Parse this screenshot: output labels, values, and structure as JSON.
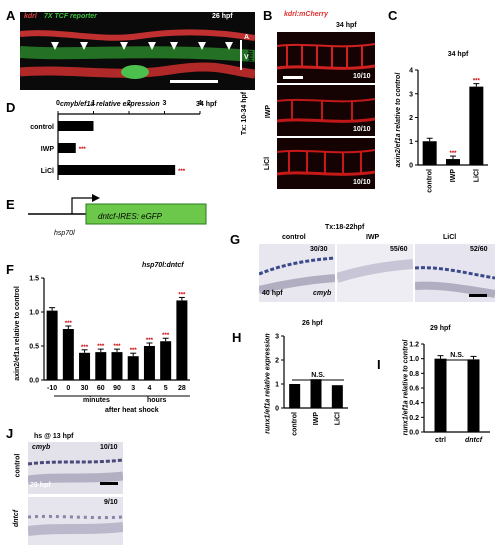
{
  "panels": {
    "A": {
      "label": "A",
      "gene1": "kdrl",
      "gene2": "7X TCF reporter",
      "stage": "26 hpf",
      "axis_a": "A",
      "axis_v": "V"
    },
    "B": {
      "label": "B",
      "gene": "kdrl:mCherry",
      "stage": "34 hpf",
      "treatment": "Tx: 10-34 hpf",
      "rows": [
        {
          "name": "control",
          "count": "10/10"
        },
        {
          "name": "IWP",
          "count": "10/10"
        },
        {
          "name": "LiCl",
          "count": "10/10"
        }
      ]
    },
    "C": {
      "label": "C",
      "title": "34 hpf",
      "ylabel": "axin2/ef1a relative to control",
      "sig": "***"
    },
    "D": {
      "label": "D",
      "title": "cmyb/ef1a relative expression",
      "stage": "34 hpf",
      "sig": "***"
    },
    "E": {
      "label": "E",
      "promoter": "hsp70l",
      "construct": "dntcf-IRES: eGFP"
    },
    "F": {
      "label": "F",
      "title": "hsp70l:dntcf",
      "ylabel": "axin2/ef1a relative to control",
      "group1": "minutes",
      "group2": "hours",
      "xlabel": "after heat shock",
      "sig": "***"
    },
    "G": {
      "label": "G",
      "treatment": "Tx:18-22hpf",
      "stage": "40 hpf",
      "gene": "cmyb",
      "columns": [
        {
          "name": "control",
          "count": "30/30"
        },
        {
          "name": "IWP",
          "count": "55/60"
        },
        {
          "name": "LiCl",
          "count": "52/60"
        }
      ]
    },
    "H": {
      "label": "H",
      "title": "26 hpf",
      "ylabel": "runx1/ef1a relative expression",
      "ns": "N.S."
    },
    "I": {
      "label": "I",
      "title": "29 hpf",
      "ylabel": "runx1/ef1a relative to control",
      "ns": "N.S."
    },
    "J": {
      "label": "J",
      "title": "hs @ 13 hpf",
      "gene": "cmyb",
      "stage": "29 hpf",
      "rows": [
        {
          "name": "control",
          "count": "10/10"
        },
        {
          "name": "dntcf",
          "count": "9/10"
        }
      ]
    }
  },
  "chart_data": [
    {
      "panel": "C",
      "type": "bar",
      "categories": [
        "control",
        "IWP",
        "LiCl"
      ],
      "values": [
        1.0,
        0.25,
        3.3
      ],
      "ylim": [
        0,
        4
      ],
      "yticks": [
        0,
        1,
        2,
        3,
        4
      ]
    },
    {
      "panel": "D",
      "type": "bar",
      "orientation": "horizontal",
      "categories": [
        "control",
        "IWP",
        "LiCl"
      ],
      "values": [
        1.0,
        0.5,
        3.3
      ],
      "xlim": [
        0,
        4
      ],
      "xticks": [
        0,
        1,
        2,
        3,
        4
      ]
    },
    {
      "panel": "F",
      "type": "bar",
      "categories": [
        "-10",
        "0",
        "30",
        "60",
        "90",
        "3",
        "4",
        "5",
        "28"
      ],
      "values": [
        1.02,
        0.75,
        0.4,
        0.41,
        0.41,
        0.35,
        0.5,
        0.57,
        1.17
      ],
      "ylim": [
        0,
        1.5
      ],
      "yticks": [
        0,
        0.5,
        1,
        1.5
      ],
      "yticklabels": [
        "0.0",
        "0.5",
        "1.0",
        "1.5"
      ]
    },
    {
      "panel": "H",
      "type": "bar",
      "categories": [
        "control",
        "IWP",
        "LiCl"
      ],
      "values": [
        1.0,
        1.2,
        0.95
      ],
      "ylim": [
        0,
        3
      ],
      "yticks": [
        0,
        1,
        2,
        3
      ]
    },
    {
      "panel": "I",
      "type": "bar",
      "categories": [
        "ctrl",
        "dntcf"
      ],
      "values": [
        1.0,
        0.99
      ],
      "ylim": [
        0,
        1.2
      ],
      "yticks": [
        0,
        0.2,
        0.4,
        0.6,
        0.8,
        1.0,
        1.2
      ],
      "yticklabels": [
        "0.0",
        "0.2",
        "0.4",
        "0.6",
        "0.8",
        "1.0",
        "1.2"
      ]
    }
  ]
}
